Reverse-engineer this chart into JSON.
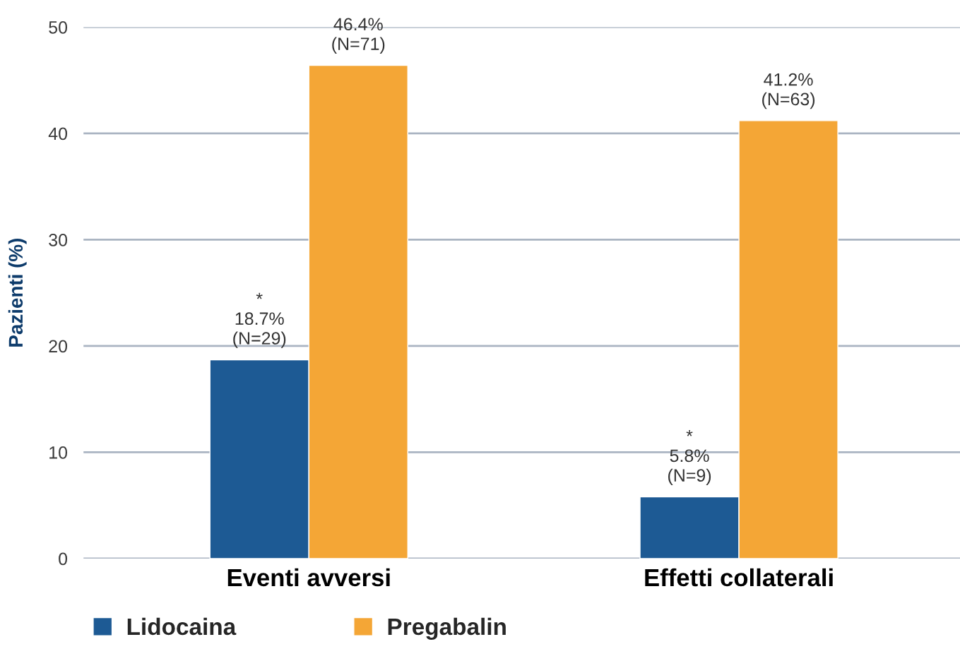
{
  "chart_data": {
    "type": "bar",
    "ylabel": "Pazienti (%)",
    "categories": [
      "Eventi avversi",
      "Effetti collaterali"
    ],
    "series": [
      {
        "name": "Lidocaina",
        "color": "#1d5a94",
        "values": [
          18.7,
          5.8
        ],
        "value_labels": [
          "*\n18.7%\n(N=29)",
          "*\n5.8%\n(N=9)"
        ]
      },
      {
        "name": "Pregabalin",
        "color": "#f4a636",
        "values": [
          46.4,
          41.2
        ],
        "value_labels": [
          "46.4%\n(N=71)",
          "41.2%\n(N=63)"
        ]
      }
    ],
    "ylim": [
      0,
      50
    ],
    "yticks": [
      0,
      10,
      20,
      30,
      40,
      50
    ],
    "grid": "y",
    "legend": "bottom"
  }
}
